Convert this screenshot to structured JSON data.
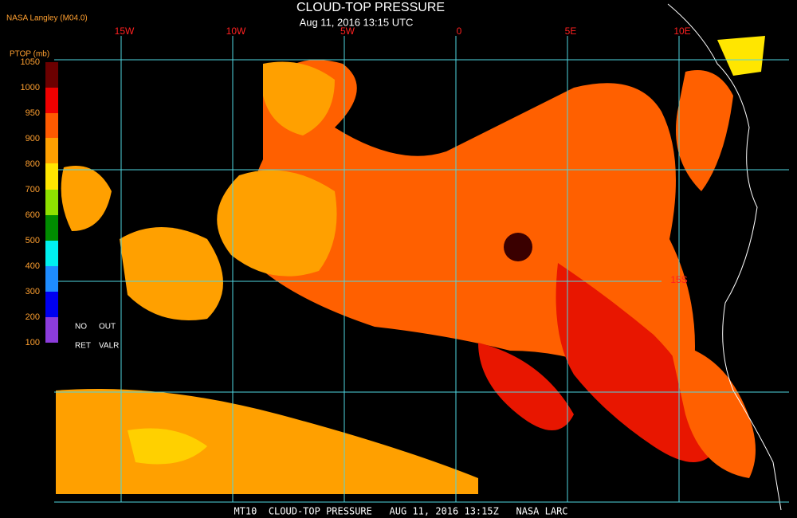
{
  "header": {
    "title": "CLOUD-TOP PRESSURE",
    "subtitle": "Aug 11, 2016 13:15 UTC",
    "credit": "NASA Langley (M04.0)"
  },
  "map": {
    "lon_labels": [
      "15W",
      "10W",
      "5W",
      "0",
      "5E",
      "10E"
    ],
    "lat_labels": [
      "15S"
    ]
  },
  "colorbar": {
    "title": "PTOP (mb)",
    "labels": [
      1050,
      1000,
      950,
      900,
      800,
      700,
      600,
      500,
      400,
      300,
      200,
      100
    ],
    "notes": [
      "NO",
      "OUT",
      "RET",
      "VALR"
    ]
  },
  "footer": "MT10  CLOUD-TOP PRESSURE   AUG 11, 2016 13:15Z   NASA LARC"
}
